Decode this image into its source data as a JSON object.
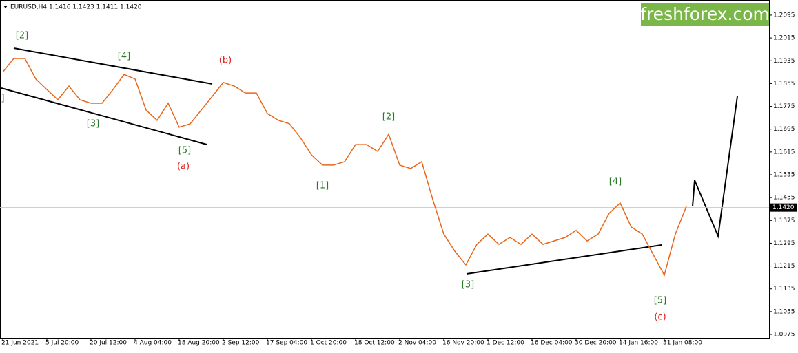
{
  "header": "EURUSD,H4  1.1416 1.1423 1.1411 1.1420",
  "brand": "freshforex.com",
  "chart_data": {
    "type": "line",
    "color": "#e8661a",
    "x_tick_labels": [
      "21 Jun 2021",
      "5 Jul 20:00",
      "20 Jul 12:00",
      "4 Aug 04:00",
      "18 Aug 20:00",
      "2 Sep 12:00",
      "17 Sep 04:00",
      "1 Oct 20:00",
      "18 Oct 12:00",
      "2 Nov 04:00",
      "16 Nov 20:00",
      "1 Dec 12:00",
      "16 Dec 04:00",
      "30 Dec 20:00",
      "14 Jan 16:00",
      "31 Jan 08:00"
    ],
    "values": [
      1.1895,
      1.1943,
      1.1943,
      1.1871,
      1.1834,
      1.1798,
      1.1846,
      1.1798,
      1.1786,
      1.1786,
      1.1834,
      1.1887,
      1.1871,
      1.1762,
      1.1726,
      1.1786,
      1.1702,
      1.1714,
      1.1762,
      1.181,
      1.1859,
      1.1846,
      1.1822,
      1.1822,
      1.175,
      1.1726,
      1.1714,
      1.1665,
      1.1605,
      1.1569,
      1.1569,
      1.1581,
      1.1641,
      1.1641,
      1.1617,
      1.1677,
      1.1569,
      1.1557,
      1.1581,
      1.1448,
      1.1327,
      1.1267,
      1.1219,
      1.1291,
      1.1327,
      1.1291,
      1.1315,
      1.1291,
      1.1327,
      1.1291,
      1.1303,
      1.1315,
      1.134,
      1.1303,
      1.1327,
      1.14,
      1.1436,
      1.1352,
      1.1327,
      1.1255,
      1.1183,
      1.1327,
      1.1424
    ],
    "ylim": [
      1.0963,
      1.2148
    ],
    "yticks": [
      1.2095,
      1.2015,
      1.1935,
      1.1855,
      1.1775,
      1.1695,
      1.1615,
      1.1535,
      1.1455,
      1.1375,
      1.1295,
      1.1215,
      1.1135,
      1.1055,
      1.0975
    ],
    "current_price": {
      "value": 1.142,
      "label": "1.1420"
    },
    "annotations": [
      {
        "text": "[2]",
        "color": "#2a7a2a"
      },
      {
        "text": "]",
        "color": "#2a7a2a"
      },
      {
        "text": "[4]",
        "color": "#2a7a2a"
      },
      {
        "text": "[3]",
        "color": "#2a7a2a"
      },
      {
        "text": "[5]",
        "color": "#2a7a2a"
      },
      {
        "text": "(a)",
        "color": "#e0201c"
      },
      {
        "text": "(b)",
        "color": "#e0201c"
      },
      {
        "text": "[1]",
        "color": "#2a7a2a"
      },
      {
        "text": "[2]",
        "color": "#2a7a2a"
      },
      {
        "text": "[3]",
        "color": "#2a7a2a"
      },
      {
        "text": "[4]",
        "color": "#2a7a2a"
      },
      {
        "text": "[5]",
        "color": "#2a7a2a"
      },
      {
        "text": "(c)",
        "color": "#e0201c"
      }
    ]
  }
}
